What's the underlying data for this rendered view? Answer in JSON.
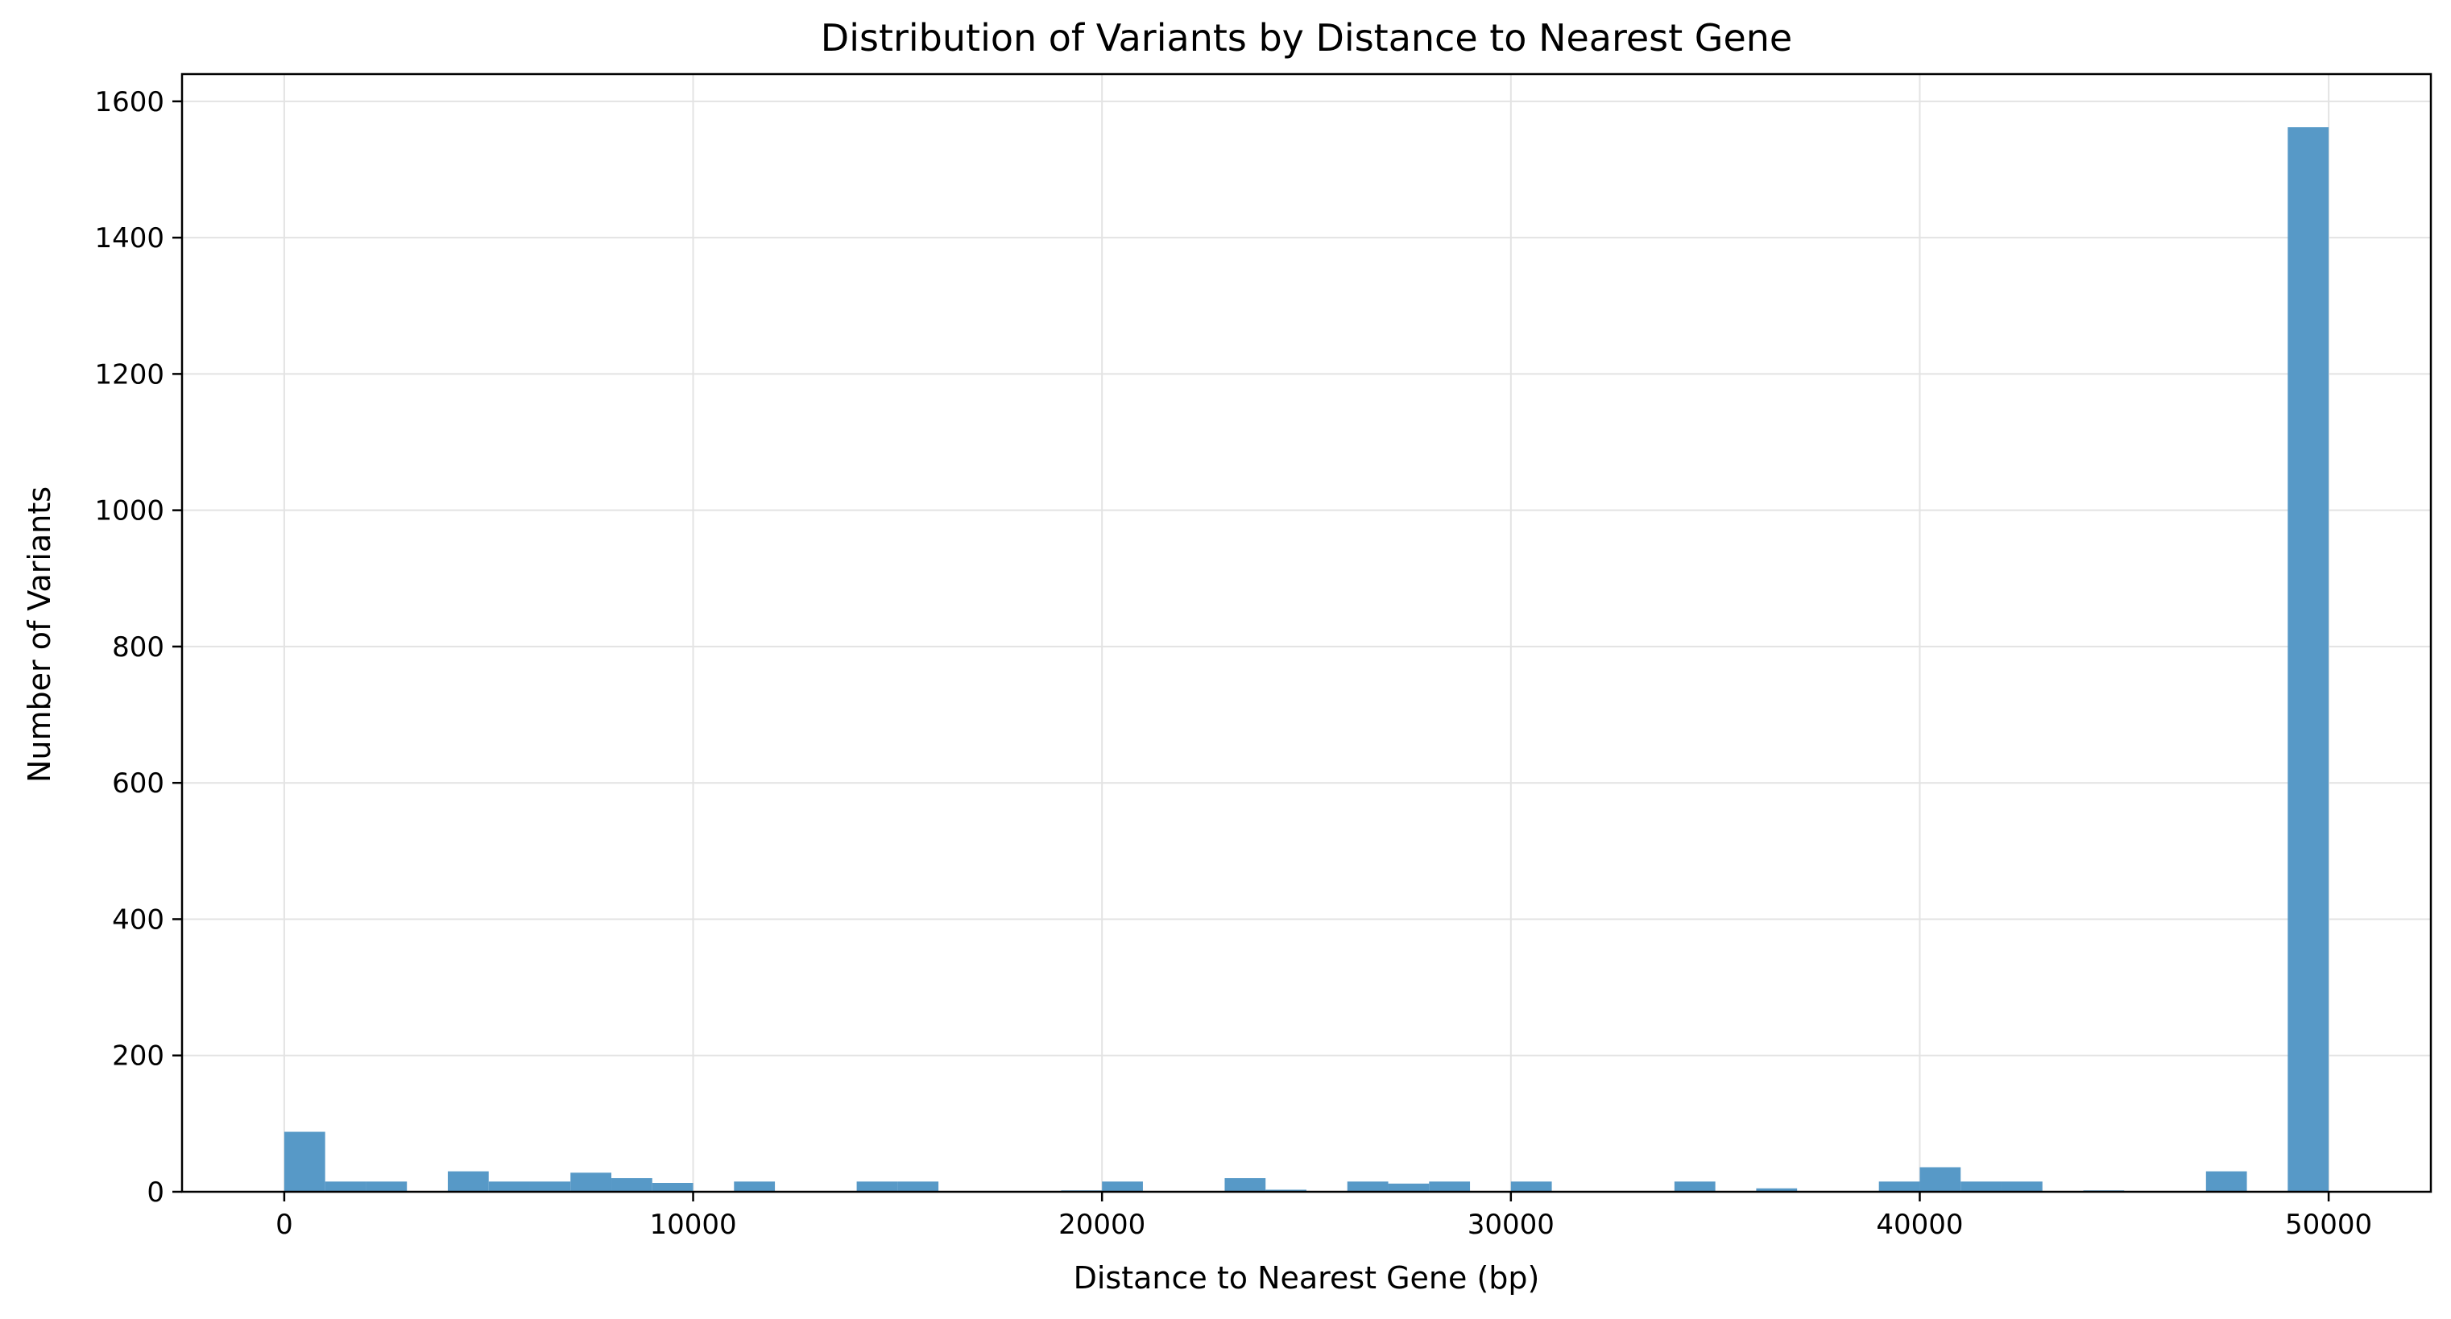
{
  "chart_data": {
    "type": "bar",
    "title": "Distribution of Variants by Distance to Nearest Gene",
    "xlabel": "Distance to Nearest Gene (bp)",
    "ylabel": "Number of Variants",
    "xlim": [
      -2500,
      52500
    ],
    "ylim": [
      0,
      1640
    ],
    "bin_width": 1000,
    "x_ticks": [
      0,
      10000,
      20000,
      30000,
      40000,
      50000
    ],
    "y_ticks": [
      0,
      200,
      400,
      600,
      800,
      1000,
      1200,
      1400,
      1600
    ],
    "grid": true,
    "bar_color": "#5799c7",
    "series": [
      {
        "bin_starts": [
          0,
          1000,
          2000,
          4000,
          5000,
          6000,
          7000,
          8000,
          9000,
          11000,
          14000,
          15000,
          19000,
          20000,
          23000,
          24000,
          26000,
          27000,
          28000,
          30000,
          34000,
          36000,
          39000,
          40000,
          41000,
          42000,
          44000,
          47000,
          49000
        ],
        "counts": [
          88,
          15,
          15,
          30,
          15,
          15,
          28,
          20,
          13,
          15,
          15,
          15,
          2,
          15,
          20,
          3,
          15,
          12,
          15,
          15,
          15,
          5,
          15,
          36,
          15,
          15,
          2,
          30,
          1562
        ]
      }
    ]
  }
}
